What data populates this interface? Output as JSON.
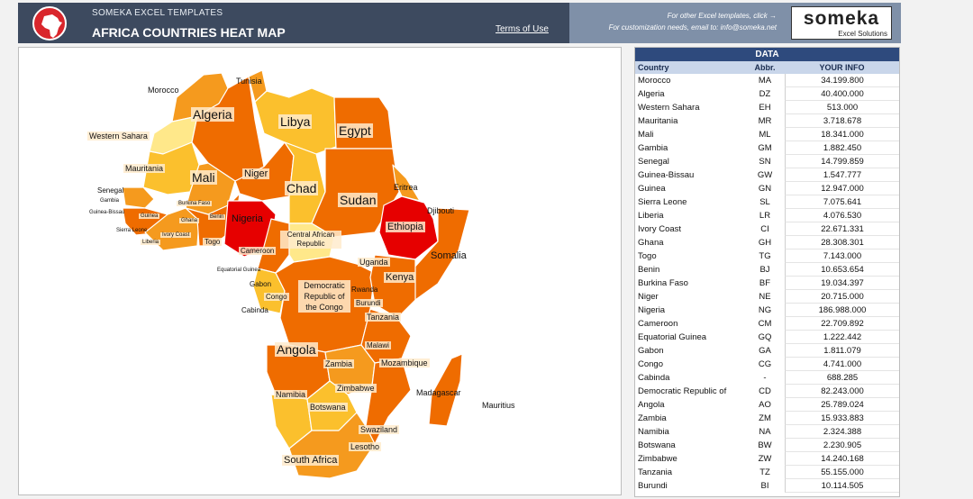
{
  "header": {
    "small_title": "SOMEKA EXCEL TEMPLATES",
    "main_title": "AFRICA COUNTRIES HEAT MAP",
    "terms_link": "Terms of Use",
    "promo_line1": "For other Excel templates, click →",
    "promo_line2": "For customization needs, email to: info@someka.net",
    "brand_name": "someka",
    "brand_sub": "Excel Solutions"
  },
  "colors": {
    "header_dark": "#3d4a5f",
    "header_light": "#7f90a8",
    "table_header": "#2e4a7d",
    "heat_high": "#e60000",
    "heat_midhigh": "#ef6c00",
    "heat_mid": "#f59a1e",
    "heat_low": "#fbc02d",
    "heat_lowest": "#ffe88a"
  },
  "map": {
    "labels": [
      {
        "text": "Morocco"
      },
      {
        "text": "Tunisia"
      },
      {
        "text": "Algeria"
      },
      {
        "text": "Libya"
      },
      {
        "text": "Egypt"
      },
      {
        "text": "Western Sahara"
      },
      {
        "text": "Mauritania"
      },
      {
        "text": "Mali"
      },
      {
        "text": "Niger"
      },
      {
        "text": "Chad"
      },
      {
        "text": "Sudan"
      },
      {
        "text": "Eritrea"
      },
      {
        "text": "Djibouti"
      },
      {
        "text": "Ethiopia"
      },
      {
        "text": "Somalia"
      },
      {
        "text": "Senegal"
      },
      {
        "text": "Gambia"
      },
      {
        "text": "Guinea-Bissau"
      },
      {
        "text": "Guinea"
      },
      {
        "text": "Sierra Leone"
      },
      {
        "text": "Liberia"
      },
      {
        "text": "Ivory Coast"
      },
      {
        "text": "Burkina Faso"
      },
      {
        "text": "Ghana"
      },
      {
        "text": "Benin"
      },
      {
        "text": "Togo"
      },
      {
        "text": "Nigeria"
      },
      {
        "text": "Cameroon"
      },
      {
        "text": "Central African Republic"
      },
      {
        "text": "Equatorial Guinea"
      },
      {
        "text": "Gabon"
      },
      {
        "text": "Congo"
      },
      {
        "text": "Cabinda"
      },
      {
        "text": "Democratic Republic of the Congo"
      },
      {
        "text": "Uganda"
      },
      {
        "text": "Kenya"
      },
      {
        "text": "Rwanda"
      },
      {
        "text": "Burundi"
      },
      {
        "text": "Tanzania"
      },
      {
        "text": "Angola"
      },
      {
        "text": "Malawi"
      },
      {
        "text": "Zambia"
      },
      {
        "text": "Mozambique"
      },
      {
        "text": "Zimbabwe"
      },
      {
        "text": "Madagascar"
      },
      {
        "text": "Mauritius"
      },
      {
        "text": "Namibia"
      },
      {
        "text": "Botswana"
      },
      {
        "text": "Swaziland"
      },
      {
        "text": "Lesotho"
      },
      {
        "text": "South Africa"
      }
    ]
  },
  "table": {
    "title": "DATA",
    "col_country": "Country",
    "col_abbr": "Abbr.",
    "col_value": "YOUR INFO",
    "rows": [
      {
        "country": "Morocco",
        "abbr": "MA",
        "value": "34.199.800"
      },
      {
        "country": "Algeria",
        "abbr": "DZ",
        "value": "40.400.000"
      },
      {
        "country": "Western Sahara",
        "abbr": "EH",
        "value": "513.000"
      },
      {
        "country": "Mauritania",
        "abbr": "MR",
        "value": "3.718.678"
      },
      {
        "country": "Mali",
        "abbr": "ML",
        "value": "18.341.000"
      },
      {
        "country": "Gambia",
        "abbr": "GM",
        "value": "1.882.450"
      },
      {
        "country": "Senegal",
        "abbr": "SN",
        "value": "14.799.859"
      },
      {
        "country": "Guinea-Bissau",
        "abbr": "GW",
        "value": "1.547.777"
      },
      {
        "country": "Guinea",
        "abbr": "GN",
        "value": "12.947.000"
      },
      {
        "country": "Sierra Leone",
        "abbr": "SL",
        "value": "7.075.641"
      },
      {
        "country": "Liberia",
        "abbr": "LR",
        "value": "4.076.530"
      },
      {
        "country": "Ivory Coast",
        "abbr": "CI",
        "value": "22.671.331"
      },
      {
        "country": "Ghana",
        "abbr": "GH",
        "value": "28.308.301"
      },
      {
        "country": "Togo",
        "abbr": "TG",
        "value": "7.143.000"
      },
      {
        "country": "Benin",
        "abbr": "BJ",
        "value": "10.653.654"
      },
      {
        "country": "Burkina Faso",
        "abbr": "BF",
        "value": "19.034.397"
      },
      {
        "country": "Niger",
        "abbr": "NE",
        "value": "20.715.000"
      },
      {
        "country": "Nigeria",
        "abbr": "NG",
        "value": "186.988.000"
      },
      {
        "country": "Cameroon",
        "abbr": "CM",
        "value": "22.709.892"
      },
      {
        "country": "Equatorial Guinea",
        "abbr": "GQ",
        "value": "1.222.442"
      },
      {
        "country": "Gabon",
        "abbr": "GA",
        "value": "1.811.079"
      },
      {
        "country": "Congo",
        "abbr": "CG",
        "value": "4.741.000"
      },
      {
        "country": "Cabinda",
        "abbr": "-",
        "value": "688.285"
      },
      {
        "country": "Democratic Republic of",
        "abbr": "CD",
        "value": "82.243.000"
      },
      {
        "country": "Angola",
        "abbr": "AO",
        "value": "25.789.024"
      },
      {
        "country": "Zambia",
        "abbr": "ZM",
        "value": "15.933.883"
      },
      {
        "country": "Namibia",
        "abbr": "NA",
        "value": "2.324.388"
      },
      {
        "country": "Botswana",
        "abbr": "BW",
        "value": "2.230.905"
      },
      {
        "country": "Zimbabwe",
        "abbr": "ZW",
        "value": "14.240.168"
      },
      {
        "country": "Tanzania",
        "abbr": "TZ",
        "value": "55.155.000"
      },
      {
        "country": "Burundi",
        "abbr": "BI",
        "value": "10.114.505"
      }
    ]
  }
}
